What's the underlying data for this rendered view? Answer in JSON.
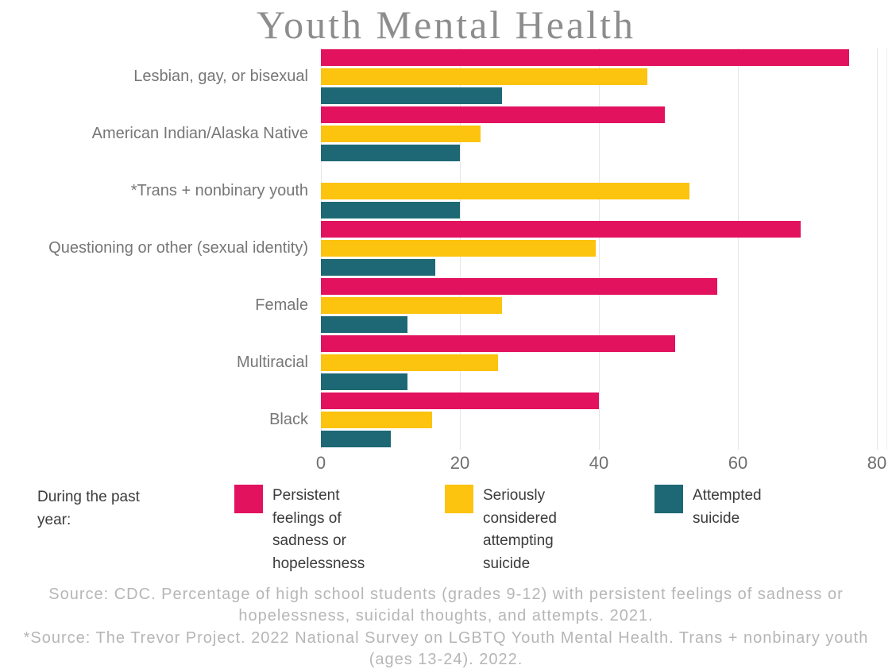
{
  "title": "Youth Mental Health",
  "colors": {
    "sadness": "#E2125E",
    "considered": "#FCC30F",
    "attempted": "#1E6875",
    "gridline": "#e6e6e6",
    "title_text": "#8d8d8d",
    "category_text": "#767676",
    "legend_text": "#3b3b3b",
    "source_text": "#b6b6b6"
  },
  "chart_data": {
    "type": "bar",
    "orientation": "horizontal",
    "title": "Youth Mental Health",
    "categories": [
      "Lesbian, gay, or bisexual",
      "American Indian/Alaska Native",
      "*Trans + nonbinary youth",
      "Questioning or other (sexual identity)",
      "Female",
      "Multiracial",
      "Black"
    ],
    "series": [
      {
        "name": "Persistent feelings of sadness or hopelessness",
        "color": "#E2125E",
        "values": [
          76,
          49.5,
          null,
          69,
          57,
          51,
          40
        ]
      },
      {
        "name": "Seriously considered attempting suicide",
        "color": "#FCC30F",
        "values": [
          47,
          23,
          53,
          39.5,
          26,
          25.5,
          16
        ]
      },
      {
        "name": "Attempted suicide",
        "color": "#1E6875",
        "values": [
          26,
          20,
          20,
          16.5,
          12.5,
          12.5,
          10
        ]
      }
    ],
    "xlabel": "",
    "ylabel": "",
    "xlim": [
      0,
      80
    ],
    "x_ticks": [
      0,
      20,
      40,
      60,
      80
    ],
    "grid": "vertical-only",
    "legend_position": "bottom",
    "values_unit": "percent"
  },
  "legend": {
    "intro": "During the past year:",
    "items": [
      {
        "label": "Persistent feelings of sadness or hopelessness",
        "color": "#E2125E"
      },
      {
        "label": "Seriously considered attempting suicide",
        "color": "#FCC30F"
      },
      {
        "label": "Attempted suicide",
        "color": "#1E6875"
      }
    ]
  },
  "footer": {
    "source1": "Source: CDC. Percentage of high school students (grades 9-12) with persistent feelings of sadness or hopelessness, suicidal thoughts, and attempts. 2021.",
    "source2": "*Source: The Trevor Project. 2022 National Survey on LGBTQ Youth Mental Health. Trans + nonbinary youth (ages 13-24). 2022."
  }
}
